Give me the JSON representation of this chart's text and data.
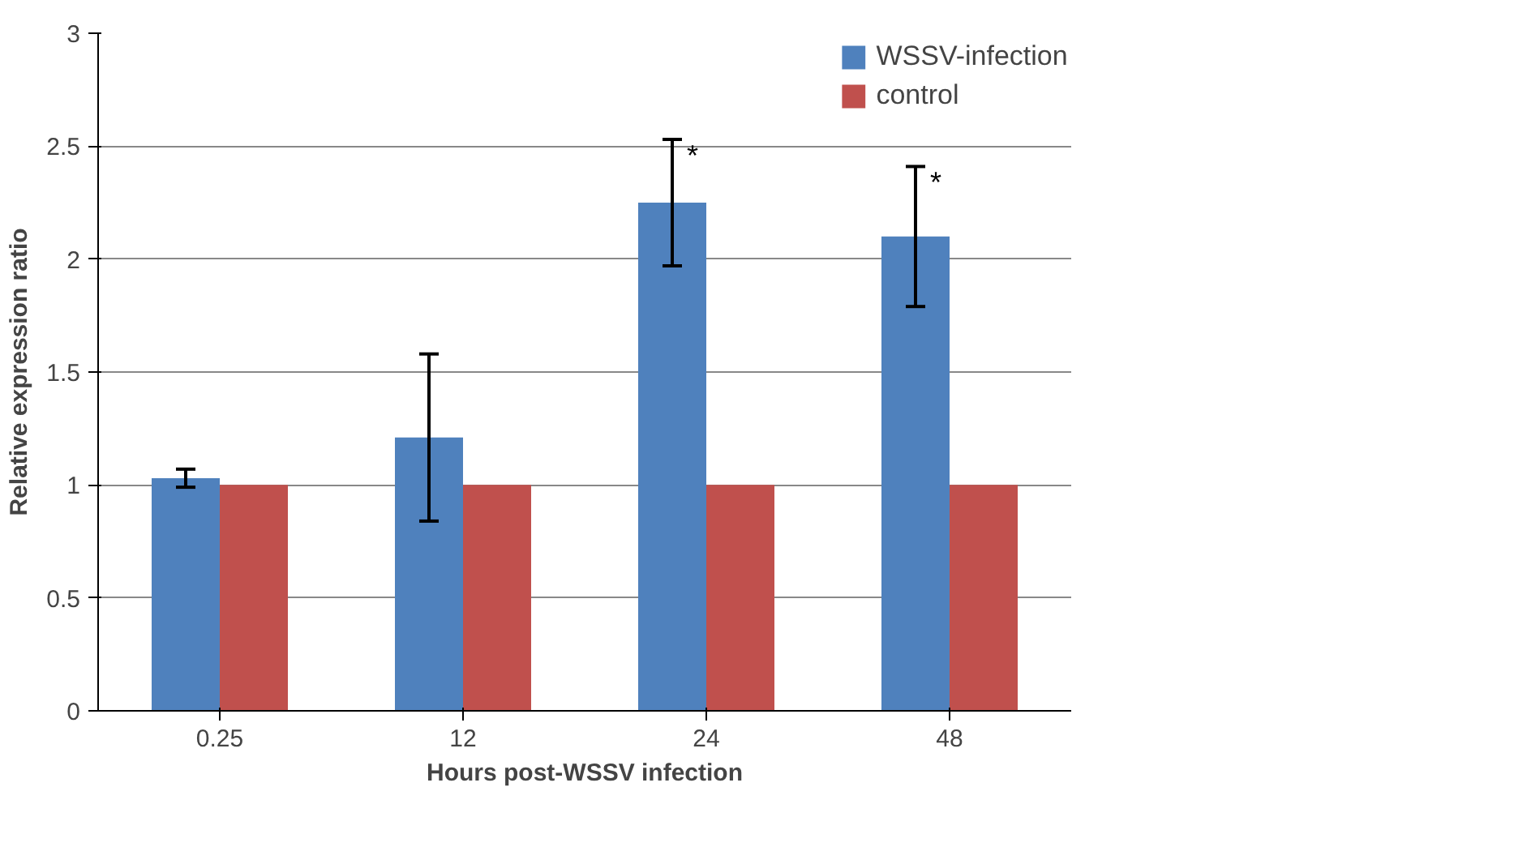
{
  "chart_data": {
    "type": "bar",
    "xlabel": "Hours post-WSSV infection",
    "ylabel": "Relative expression ratio",
    "categories": [
      "0.25",
      "12",
      "24",
      "48"
    ],
    "series": [
      {
        "name": "WSSV-infection",
        "color": "#4f81bd",
        "values": [
          1.03,
          1.21,
          2.25,
          2.1
        ],
        "errors": [
          0.04,
          0.37,
          0.28,
          0.31
        ]
      },
      {
        "name": "control",
        "color": "#c0504d",
        "values": [
          1,
          1,
          1,
          1
        ]
      }
    ],
    "ylim": [
      0,
      3
    ],
    "yticks": [
      0,
      0.5,
      1,
      1.5,
      2,
      2.5,
      3
    ],
    "grid": "y",
    "legend": "right",
    "annotations": [
      "*",
      "*"
    ]
  }
}
